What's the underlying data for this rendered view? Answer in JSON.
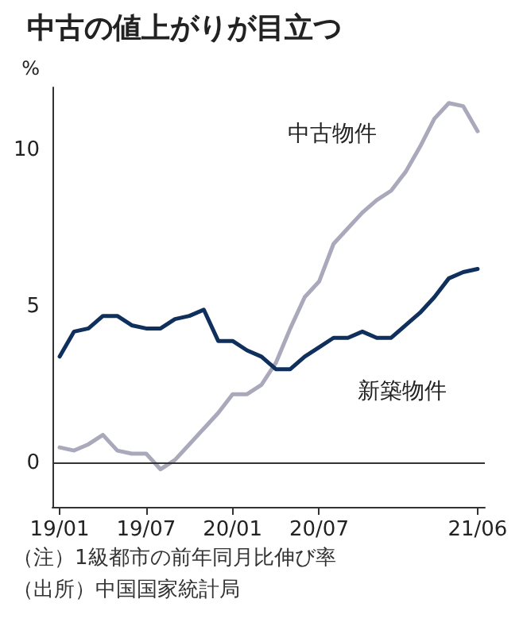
{
  "chart_data": {
    "type": "line",
    "title": "中古の値上がりが目立つ",
    "ylabel": "%",
    "categories": [
      "19/01",
      null,
      null,
      null,
      null,
      null,
      "19/07",
      null,
      null,
      null,
      null,
      null,
      "20/01",
      null,
      null,
      null,
      null,
      null,
      "20/07",
      null,
      null,
      null,
      null,
      null,
      null,
      null,
      null,
      null,
      null,
      "21/06"
    ],
    "series": [
      {
        "name": "中古物件",
        "color": "#a9a9bb",
        "values": [
          0.5,
          0.4,
          0.6,
          0.9,
          0.4,
          0.3,
          0.3,
          -0.2,
          0.1,
          0.6,
          1.1,
          1.6,
          2.2,
          2.2,
          2.5,
          3.2,
          4.3,
          5.3,
          5.8,
          7.0,
          7.5,
          8.0,
          8.4,
          8.7,
          9.3,
          10.1,
          11.0,
          11.5,
          11.4,
          10.6
        ]
      },
      {
        "name": "新築物件",
        "color": "#0f2f5c",
        "values": [
          3.4,
          4.2,
          4.3,
          4.7,
          4.7,
          4.4,
          4.3,
          4.3,
          4.6,
          4.7,
          4.9,
          3.9,
          3.9,
          3.6,
          3.4,
          3.0,
          3.0,
          3.4,
          3.7,
          4.0,
          4.0,
          4.2,
          4.0,
          4.0,
          4.4,
          4.8,
          5.3,
          5.9,
          6.1,
          6.2
        ]
      }
    ],
    "ylim": [
      -1.4,
      12
    ],
    "yticks": [
      0,
      5,
      10
    ],
    "grid": false,
    "legend": false,
    "marker": "none",
    "line_style": "solid",
    "ref_lines": [
      {
        "axis": "y",
        "value": 0
      }
    ],
    "annotations": [
      "（注）1級都市の前年同月比伸び率",
      "（出所）中国国家統計局"
    ]
  }
}
